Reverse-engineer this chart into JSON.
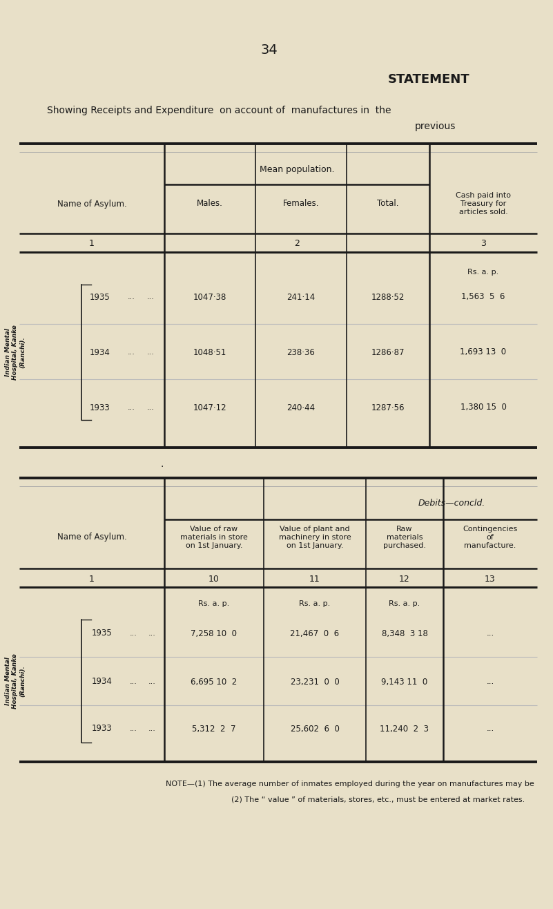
{
  "page_number": "34",
  "title_right": "STATEMENT",
  "subtitle_line1": "Showing Receipts and Expenditure  on account of  manufactures in  the",
  "subtitle_line2": "previous",
  "bg_color": "#e8e0c8",
  "table1": {
    "header_group": "Mean population.",
    "col_headers_asylum": "Name of Asylum.",
    "col_headers_males": "Males.",
    "col_headers_females": "Females.",
    "col_headers_total": "Total.",
    "col_headers_cash": "Cash paid into\nTreasury for\narticles sold.",
    "col_num1": "1",
    "col_num2": "2",
    "col_num3": "3",
    "units_cash": "Rs. a. p.",
    "asylum_label": "Indian Mental\nHospital, Kanke\n(Ranchi).",
    "rows": [
      {
        "year": "1935",
        "males": "1047·38",
        "females": "241·14",
        "total": "1288·52",
        "cash": "1,563  5  6"
      },
      {
        "year": "1934",
        "males": "1048·51",
        "females": "238·36",
        "total": "1286·87",
        "cash": "1,693 13  0"
      },
      {
        "year": "1933",
        "males": "1047·12",
        "females": "240·44",
        "total": "1287·56",
        "cash": "1,380 15  0"
      }
    ]
  },
  "table2": {
    "header_group": "Debits—concld.",
    "col_headers_asylum": "Name of Asylum.",
    "col_headers_c10": "Value of raw\nmaterials in store\non 1st January.",
    "col_headers_c11": "Value of plant and\nmachinery in store\non 1st January.",
    "col_headers_c12": "Raw\nmaterials\npurchased.",
    "col_headers_c13": "Contingencies\nof\nmanufacture.",
    "col_num1": "1",
    "col_num10": "10",
    "col_num11": "11",
    "col_num12": "12",
    "col_num13": "13",
    "units_rsp": "Rs. a. p.",
    "asylum_label": "Indian Mental\nHospital, Kanke\n(Ranchi).",
    "rows": [
      {
        "year": "1935",
        "c10": "7,258 10  0",
        "c11": "21,467  0  6",
        "c12": "8,348  3 18",
        "c13": "..."
      },
      {
        "year": "1934",
        "c10": "6,695 10  2",
        "c11": "23,231  0  0",
        "c12": "9,143 11  0",
        "c13": "..."
      },
      {
        "year": "1933",
        "c10": "5,312  2  7",
        "c11": "25,602  6  0",
        "c12": "11,240  2  3",
        "c13": "..."
      }
    ]
  },
  "note_line1": "NOTE—(1) The average number of inmates employed during the year on manufactures may be",
  "note_line2": "          (2) The “ value ” of materials, stores, etc., must be entered at market rates."
}
